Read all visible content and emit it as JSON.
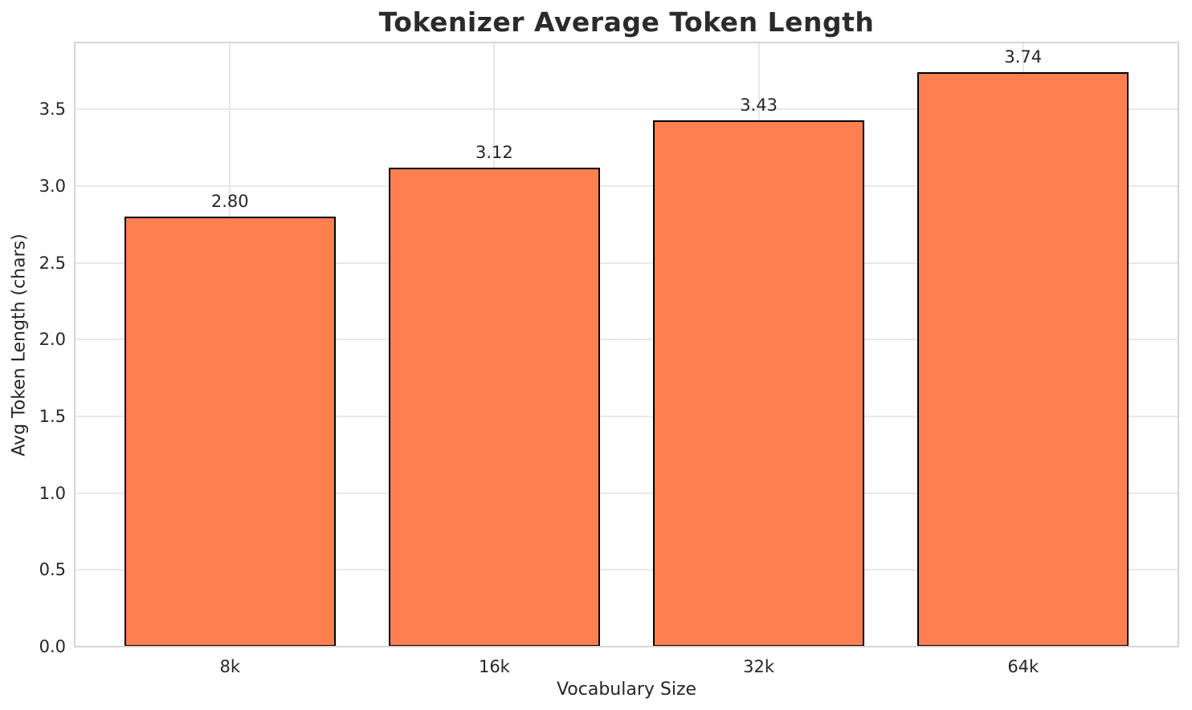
{
  "chart_data": {
    "type": "bar",
    "title": "Tokenizer Average Token Length",
    "xlabel": "Vocabulary Size",
    "ylabel": "Avg Token Length (chars)",
    "categories": [
      "8k",
      "16k",
      "32k",
      "64k"
    ],
    "values": [
      2.8,
      3.12,
      3.43,
      3.74
    ],
    "value_labels": [
      "2.80",
      "3.12",
      "3.43",
      "3.74"
    ],
    "ytick_values": [
      0.0,
      0.5,
      1.0,
      1.5,
      2.0,
      2.5,
      3.0,
      3.5
    ],
    "ytick_labels": [
      "0.0",
      "0.5",
      "1.0",
      "1.5",
      "2.0",
      "2.5",
      "3.0",
      "3.5"
    ],
    "ylim": [
      0,
      3.94
    ],
    "grid": true,
    "legend": null,
    "bar_color": "#FF7F50",
    "bar_edge_color": "#000000",
    "grid_color": "#e8e8e8",
    "spine_color": "#d5d5d5",
    "text_color": "#262626"
  }
}
